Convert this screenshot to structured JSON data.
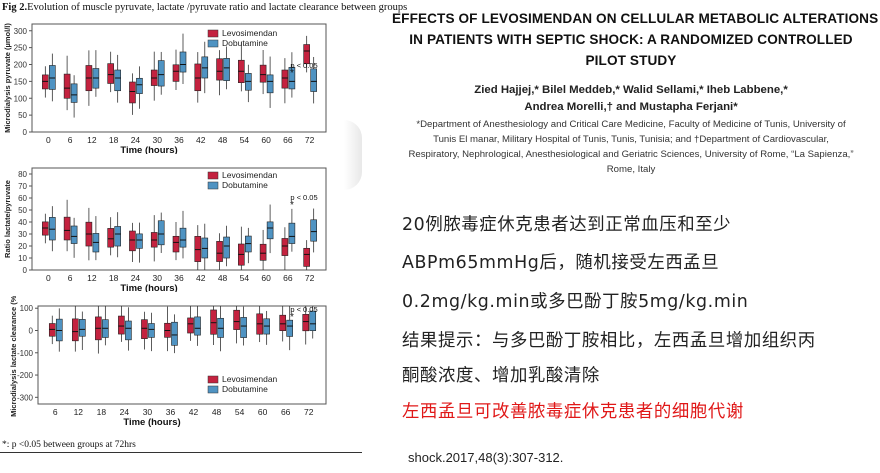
{
  "figure": {
    "caption_bold": "Fig 2.",
    "caption_text": "Evolution of muscle pyruvate, lactate /pyruvate ratio and lactate clearance between groups",
    "footnote": "*: p <0.05 between groups at 72hrs",
    "colors": {
      "levosimendan": "#c4223f",
      "dobutamine": "#4f93c2"
    }
  },
  "chart_data": [
    {
      "type": "box",
      "ylabel": "Microdialysis pyruvate (µmol/l)",
      "xlabel": "Time (hours)",
      "categories": [
        "0",
        "6",
        "12",
        "18",
        "24",
        "30",
        "36",
        "42",
        "48",
        "54",
        "60",
        "66",
        "72"
      ],
      "yticks": [
        "0",
        "50",
        "100",
        "150",
        "200",
        "250",
        "300"
      ],
      "ylim": [
        0,
        320
      ],
      "legend": [
        "Levosimendan",
        "Dobutamine"
      ],
      "annotation": "p < 0.05",
      "series": [
        {
          "name": "Levosimendan",
          "medians": [
            150,
            130,
            160,
            170,
            120,
            160,
            180,
            160,
            180,
            180,
            170,
            160,
            240
          ]
        },
        {
          "name": "Dobutamine",
          "medians": [
            160,
            110,
            160,
            160,
            140,
            170,
            200,
            190,
            190,
            150,
            150,
            150,
            150
          ]
        }
      ]
    },
    {
      "type": "box",
      "ylabel": "Ratio lactate/pyruvate",
      "xlabel": "Time (hours)",
      "categories": [
        "0",
        "6",
        "12",
        "18",
        "24",
        "30",
        "36",
        "42",
        "48",
        "54",
        "60",
        "66",
        "72"
      ],
      "yticks": [
        "0",
        "10",
        "20",
        "30",
        "40",
        "50",
        "60",
        "70",
        "80"
      ],
      "ylim": [
        0,
        85
      ],
      "legend": [
        "Levosimendan",
        "Dobutamine"
      ],
      "annotation": "p < 0.05",
      "series": [
        {
          "name": "Levosimendan",
          "medians": [
            35,
            33,
            30,
            26,
            25,
            25,
            23,
            17,
            14,
            13,
            14,
            20,
            13
          ]
        },
        {
          "name": "Dobutamine",
          "medians": [
            34,
            28,
            23,
            30,
            25,
            30,
            25,
            18,
            20,
            22,
            35,
            28,
            32
          ]
        }
      ]
    },
    {
      "type": "box",
      "ylabel": "Microdialysis lactate clearance (%)",
      "xlabel": "Time (hours)",
      "categories": [
        "6",
        "12",
        "18",
        "24",
        "30",
        "36",
        "42",
        "48",
        "54",
        "60",
        "66",
        "72"
      ],
      "yticks": [
        "100",
        "0",
        "-100",
        "-200",
        "-300"
      ],
      "ylim": [
        -330,
        110
      ],
      "legend": [
        "Levosimendan",
        "Dobutamine"
      ],
      "annotation": "p < 0.05",
      "series": [
        {
          "name": "Levosimendan",
          "medians": [
            5,
            -5,
            10,
            20,
            10,
            0,
            30,
            35,
            40,
            30,
            30,
            40
          ]
        },
        {
          "name": "Dobutamine",
          "medians": [
            0,
            5,
            10,
            10,
            5,
            -20,
            10,
            10,
            20,
            20,
            20,
            30
          ]
        }
      ]
    }
  ],
  "paper": {
    "title_lines": [
      "EFFECTS OF LEVOSIMENDAN ON CELLULAR METABOLIC ALTERATIONS",
      "IN PATIENTS WITH SEPTIC SHOCK: A RANDOMIZED CONTROLLED",
      "PILOT STUDY"
    ],
    "author_lines": [
      "Zied Hajjej,* Bilel Meddeb,* Walid Sellami,* Iheb Labbene,*",
      "Andrea Morelli,† and Mustapha Ferjani*"
    ],
    "affiliation_lines": [
      "*Department of Anesthesiology and Critical Care Medicine, Faculty of Medicine of Tunis, University of",
      "Tunis El manar, Military Hospital of Tunis, Tunis, Tunisia; and †Department of Cardiovascular,",
      "Respiratory, Nephrological, Anesthesiological and Geriatric Sciences, University of Rome, “La Sapienza,”",
      "Rome, Italy"
    ]
  },
  "summary": {
    "line1": "20例脓毒症休克患者达到正常血压和至少",
    "line2": "ABPm65mmHg后，随机接受左西孟旦",
    "line3": "0.2mg/kg.min或多巴酚丁胺5mg/kg.min",
    "line4": "结果提示：与多巴酚丁胺相比，左西孟旦增加组织丙",
    "line5": "酮酸浓度、增加乳酸清除",
    "conclusion": "左西孟旦可改善脓毒症休克患者的细胞代谢",
    "conclusion_color": "#e01818"
  },
  "citation": "shock.2017,48(3):307-312."
}
